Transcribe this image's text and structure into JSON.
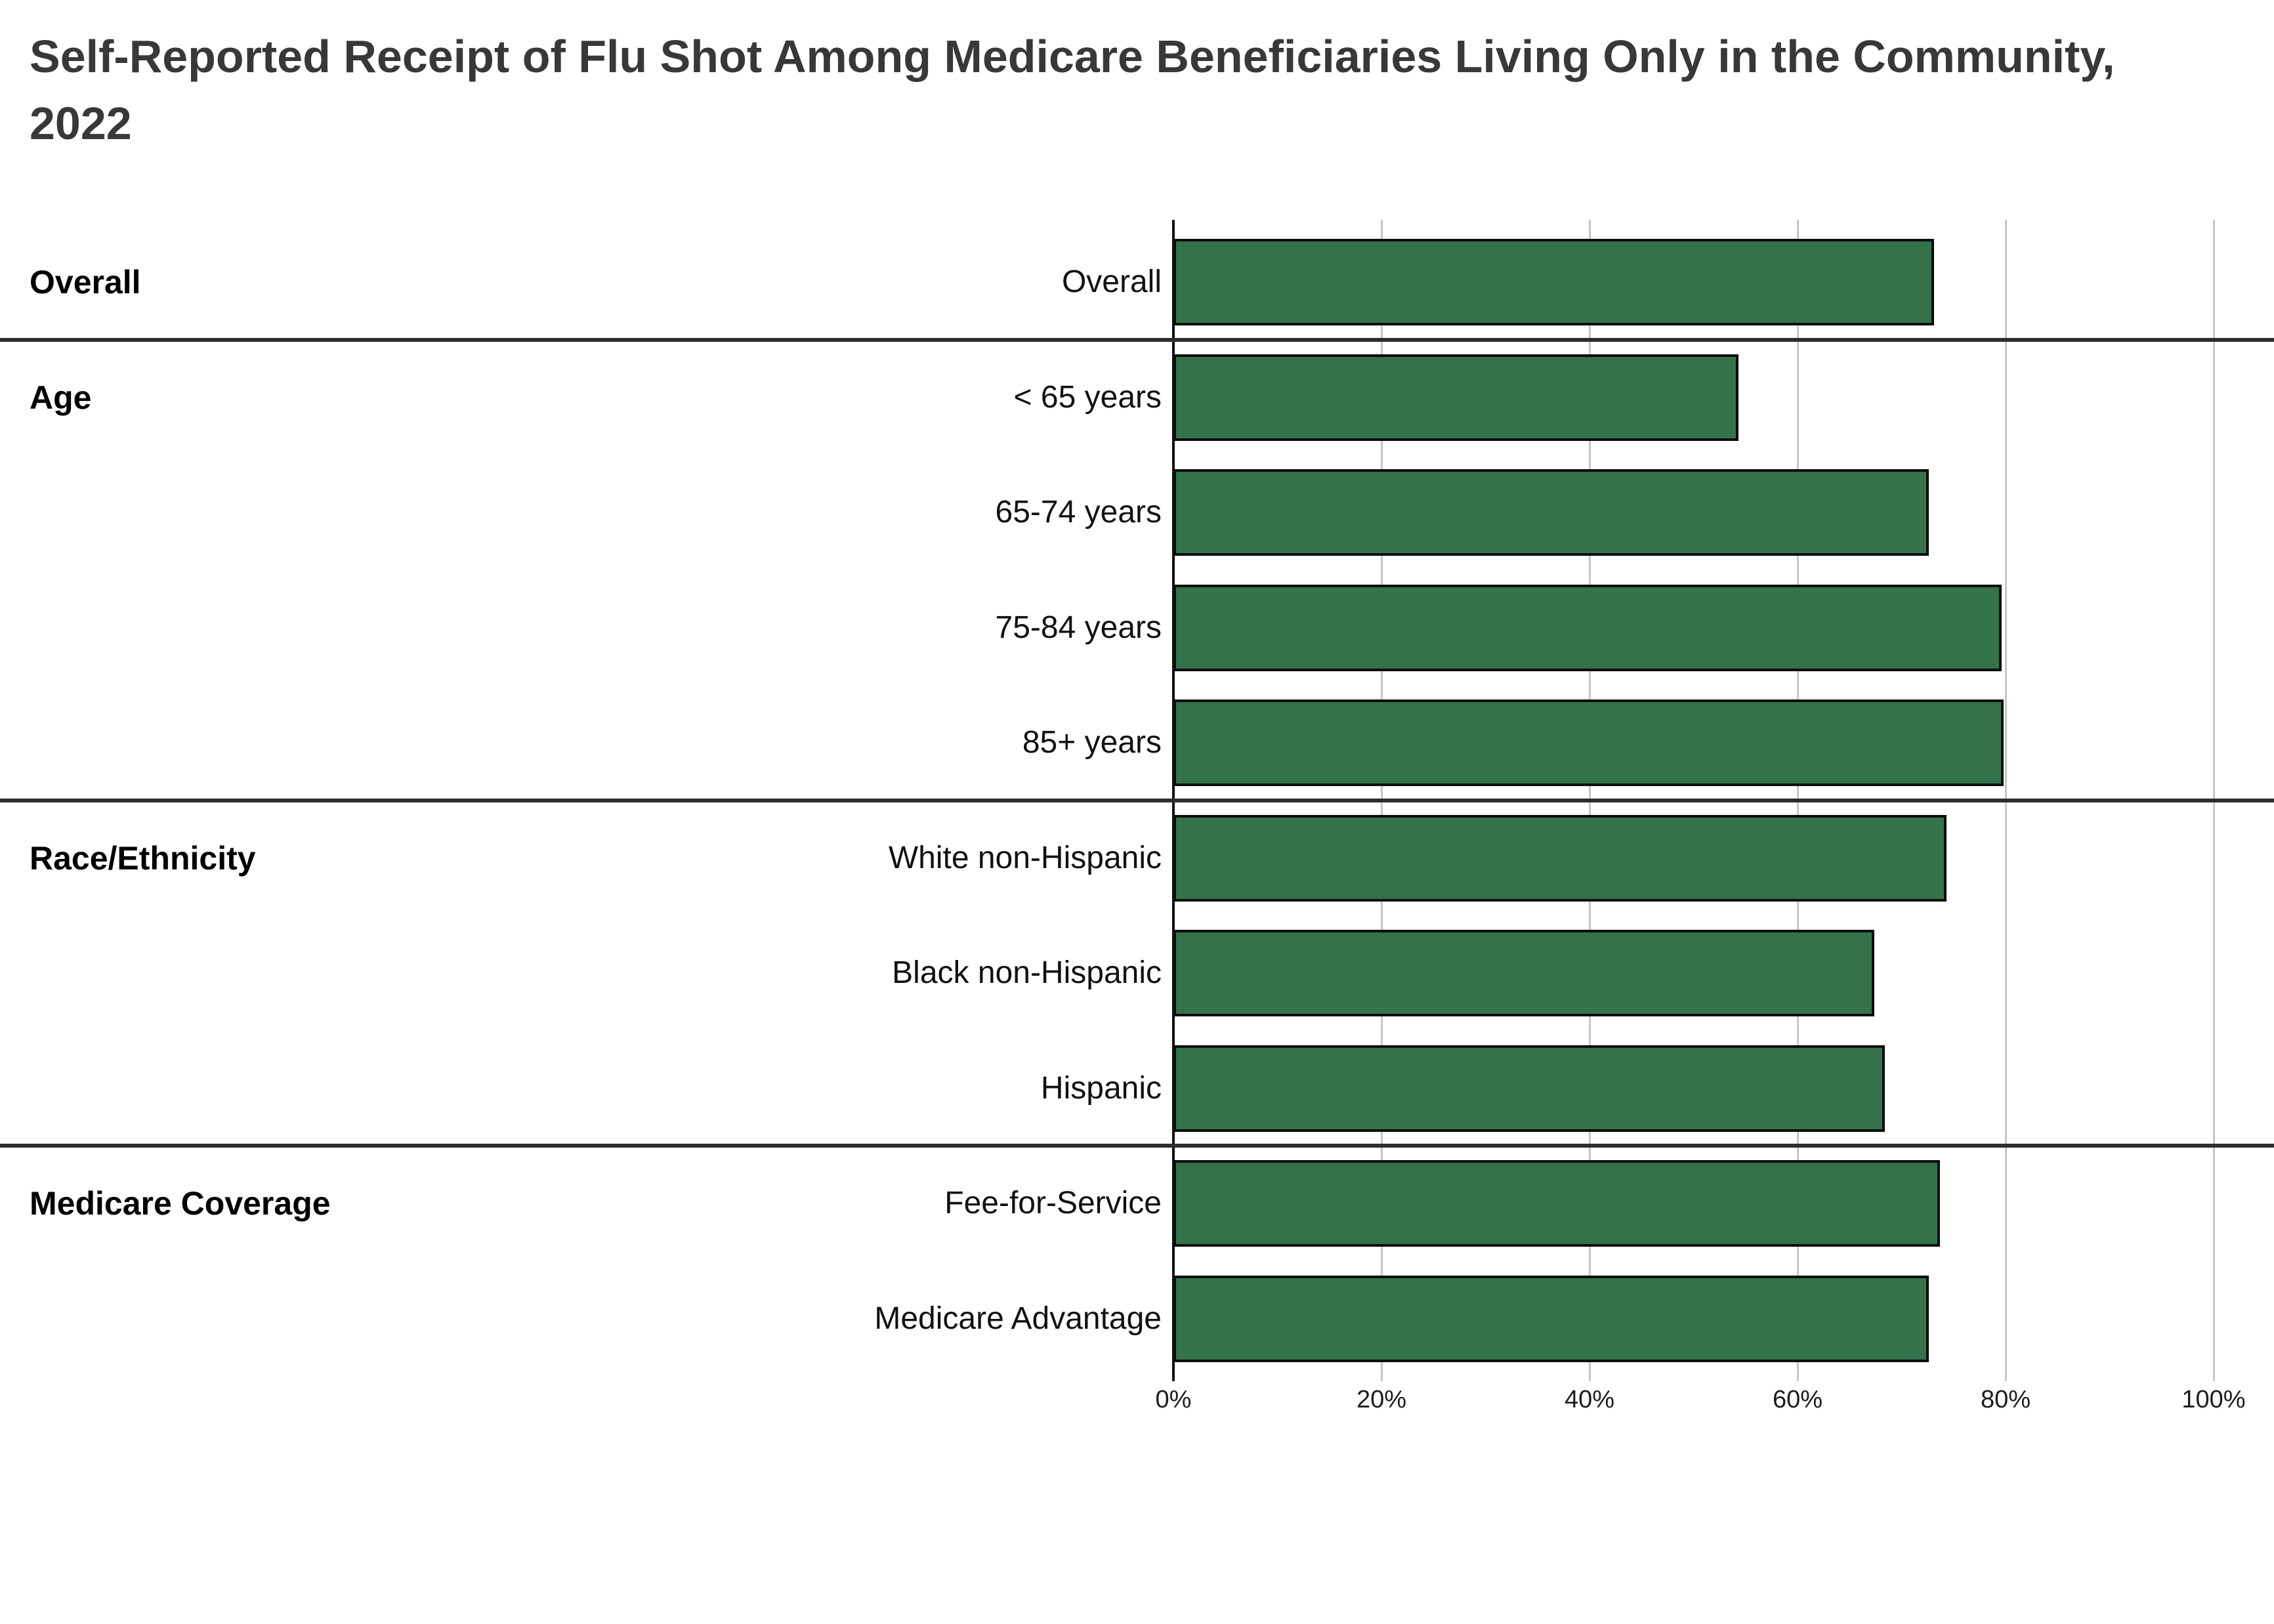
{
  "title": "Self-Reported Receipt of Flu Shot Among Medicare Beneficiaries Living Only in the Community, 2022",
  "colors": {
    "bar_fill": "#34724B",
    "bar_border": "#0d0d0d",
    "gridline": "#c6c6c6",
    "axis_line": "#111111",
    "separator": "#2e2e2e",
    "title_text": "#383838",
    "label_text": "#111111",
    "background": "#ffffff"
  },
  "chart_data": {
    "type": "bar",
    "orientation": "horizontal",
    "title": "Self-Reported Receipt of Flu Shot Among Medicare Beneficiaries Living Only in the Community, 2022",
    "value_unit": "%",
    "x_axis": {
      "min": 0,
      "max": 100,
      "tick_step": 20,
      "tick_labels": [
        "0%",
        "20%",
        "40%",
        "60%",
        "80%",
        "100%"
      ],
      "grid": true
    },
    "legend": false,
    "groups": [
      {
        "label": "Overall",
        "rows": [
          {
            "label": "Overall",
            "value": 73.1
          }
        ]
      },
      {
        "label": "Age",
        "rows": [
          {
            "label": "< 65 years",
            "value": 54.3
          },
          {
            "label": "65-74 years",
            "value": 72.6
          },
          {
            "label": "75-84 years",
            "value": 79.6
          },
          {
            "label": "85+ years",
            "value": 79.8
          }
        ]
      },
      {
        "label": "Race/Ethnicity",
        "rows": [
          {
            "label": "White non-Hispanic",
            "value": 74.3
          },
          {
            "label": "Black non-Hispanic",
            "value": 67.4
          },
          {
            "label": "Hispanic",
            "value": 68.4
          }
        ]
      },
      {
        "label": "Medicare Coverage",
        "rows": [
          {
            "label": "Fee-for-Service",
            "value": 73.7
          },
          {
            "label": "Medicare Advantage",
            "value": 72.6
          }
        ]
      }
    ]
  }
}
